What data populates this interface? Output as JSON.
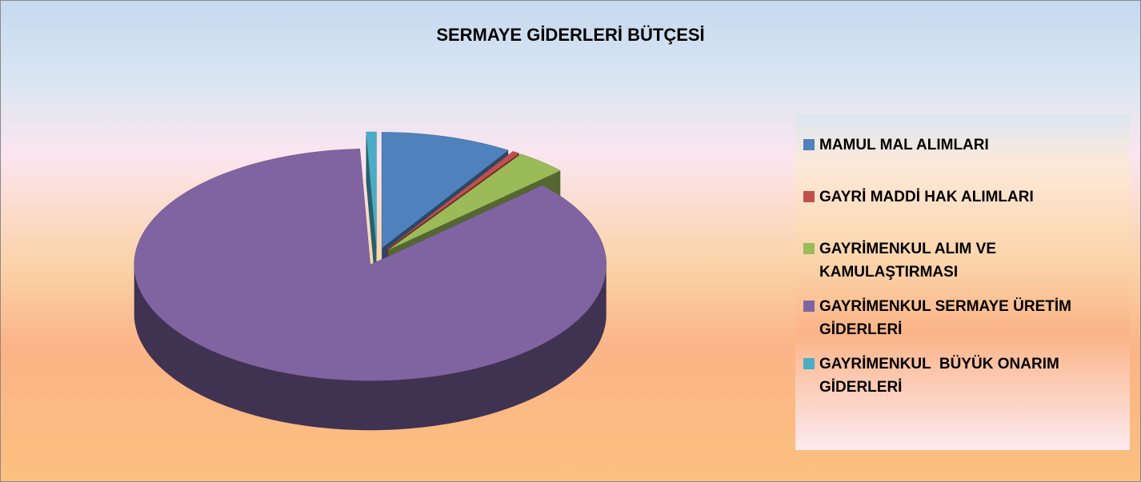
{
  "chart_data": {
    "type": "pie",
    "title": "SERMAYE GİDERLERİ BÜTÇESİ",
    "categories": [
      "MAMUL MAL ALIMLARI",
      "GAYRİ MADDİ HAK ALIMLARI",
      "GAYRİMENKUL ALIM VE KAMULAŞTIRMASI",
      "GAYRİMENKUL SERMAYE ÜRETİM GİDERLERİ",
      "GAYRİMENKUL  BÜYÜK ONARIM GİDERLERİ"
    ],
    "values": [
      9,
      0.5,
      3.5,
      86.3,
      0.7
    ],
    "colors": [
      "#4f81bd",
      "#c0504d",
      "#9bbb59",
      "#8064a2",
      "#4bacc6"
    ],
    "legend": "right"
  }
}
